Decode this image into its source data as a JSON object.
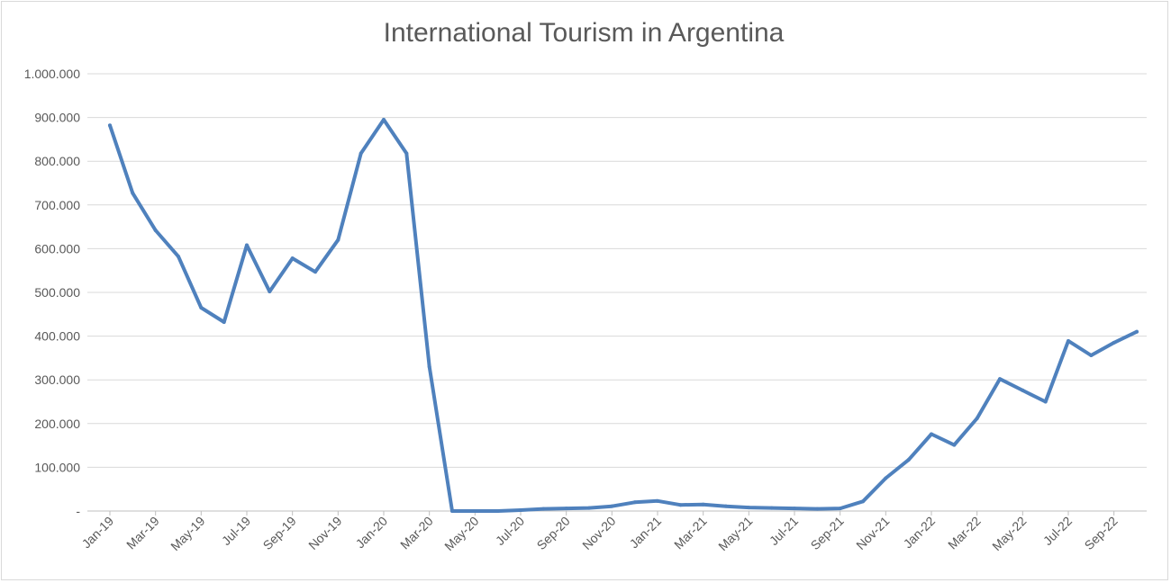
{
  "chart_data": {
    "type": "line",
    "title": "International Tourism in Argentina",
    "xlabel": "",
    "ylabel": "",
    "ylim": [
      0,
      1000000
    ],
    "grid": true,
    "legend": "none",
    "series_color": "#4f81bd",
    "y_ticks": [
      {
        "value": 0,
        "label": "-"
      },
      {
        "value": 100000,
        "label": "100.000"
      },
      {
        "value": 200000,
        "label": "200.000"
      },
      {
        "value": 300000,
        "label": "300.000"
      },
      {
        "value": 400000,
        "label": "400.000"
      },
      {
        "value": 500000,
        "label": "500.000"
      },
      {
        "value": 600000,
        "label": "600.000"
      },
      {
        "value": 700000,
        "label": "700.000"
      },
      {
        "value": 800000,
        "label": "800.000"
      },
      {
        "value": 900000,
        "label": "900.000"
      },
      {
        "value": 1000000,
        "label": "1.000.000"
      }
    ],
    "categories": [
      "Jan-19",
      "Feb-19",
      "Mar-19",
      "Apr-19",
      "May-19",
      "Jun-19",
      "Jul-19",
      "Aug-19",
      "Sep-19",
      "Oct-19",
      "Nov-19",
      "Dec-19",
      "Jan-20",
      "Feb-20",
      "Mar-20",
      "Apr-20",
      "May-20",
      "Jun-20",
      "Jul-20",
      "Aug-20",
      "Sep-20",
      "Oct-20",
      "Nov-20",
      "Dec-20",
      "Jan-21",
      "Feb-21",
      "Mar-21",
      "Apr-21",
      "May-21",
      "Jun-21",
      "Jul-21",
      "Aug-21",
      "Sep-21",
      "Oct-21",
      "Nov-21",
      "Dec-21",
      "Jan-22",
      "Feb-22",
      "Mar-22",
      "Apr-22",
      "May-22",
      "Jun-22",
      "Jul-22",
      "Aug-22",
      "Sep-22",
      "Oct-22"
    ],
    "x_tick_labels": [
      "Jan-19",
      "Mar-19",
      "May-19",
      "Jul-19",
      "Sep-19",
      "Nov-19",
      "Jan-20",
      "Mar-20",
      "May-20",
      "Jul-20",
      "Sep-20",
      "Nov-20",
      "Jan-21",
      "Mar-21",
      "May-21",
      "Jul-21",
      "Sep-21",
      "Nov-21",
      "Jan-22",
      "Mar-22",
      "May-22",
      "Jul-22",
      "Sep-22"
    ],
    "x_tick_every": 2,
    "values": [
      882000,
      727000,
      642000,
      582000,
      465000,
      432000,
      608000,
      502000,
      578000,
      547000,
      620000,
      818000,
      895000,
      818000,
      330000,
      0,
      0,
      0,
      2000,
      5000,
      6000,
      7000,
      11000,
      20000,
      23000,
      14000,
      15000,
      11000,
      8000,
      7000,
      6000,
      5000,
      6000,
      22000,
      75000,
      117000,
      176000,
      151000,
      212000,
      302000,
      276000,
      250000,
      389000,
      356000,
      385000,
      410000
    ]
  }
}
